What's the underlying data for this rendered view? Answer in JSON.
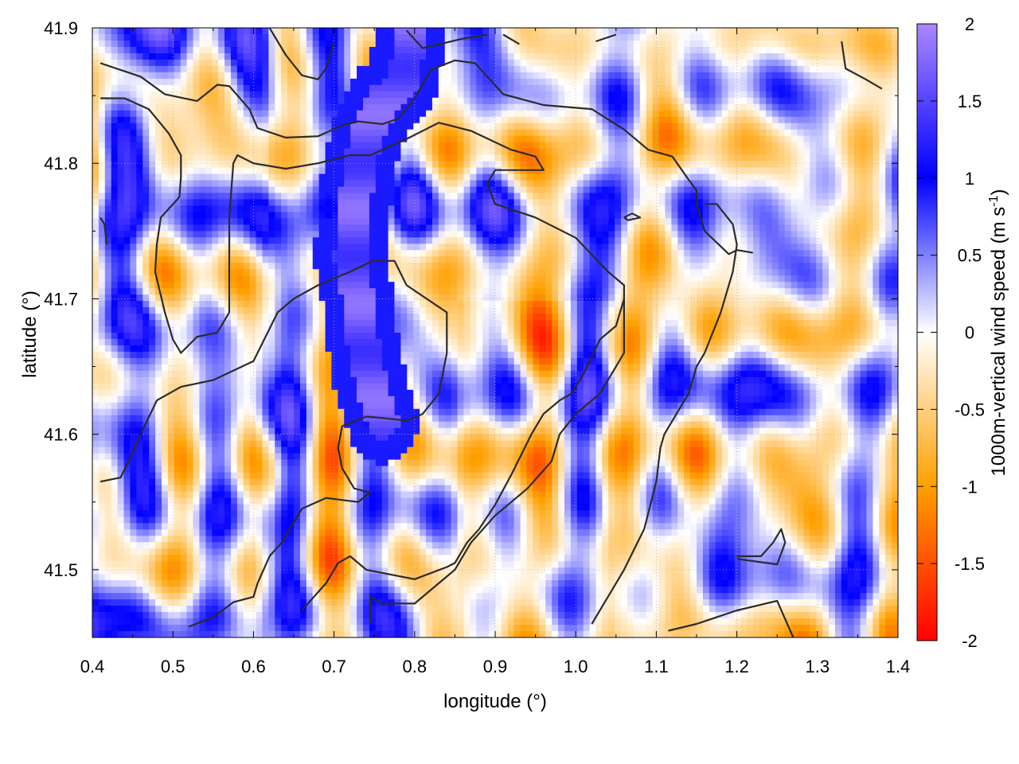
{
  "chart_data": {
    "type": "heatmap",
    "title": "",
    "xlabel": "longitude (°)",
    "ylabel": "latitude (°)",
    "colorbar_label": "1000m-vertical wind speed (m s",
    "colorbar_label_superscript": "-1",
    "colorbar_label_suffix": ")",
    "xlim": [
      0.4,
      1.4
    ],
    "ylim": [
      41.45,
      41.9
    ],
    "clim": [
      -2,
      2
    ],
    "x_ticks": [
      0.4,
      0.5,
      0.6,
      0.7,
      0.8,
      0.9,
      1.0,
      1.1,
      1.2,
      1.3,
      1.4
    ],
    "x_tick_labels": [
      "0.4",
      "0.5",
      "0.6",
      "0.7",
      "0.8",
      "0.9",
      "1.0",
      "1.1",
      "1.2",
      "1.3",
      "1.4"
    ],
    "y_ticks": [
      41.5,
      41.6,
      41.7,
      41.8,
      41.9
    ],
    "y_tick_labels": [
      "41.5",
      "41.6",
      "41.7",
      "41.8",
      "41.9"
    ],
    "colorbar_ticks": [
      2,
      1.5,
      1,
      0.5,
      0,
      -0.5,
      -1,
      -1.5,
      -2
    ],
    "colorbar_tick_labels": [
      "2",
      "1.5",
      "1",
      "0.5",
      "0",
      "-0.5",
      "-1",
      "-1.5",
      "-2"
    ],
    "colormap": [
      {
        "value": -2,
        "color": "#ff0000"
      },
      {
        "value": -1,
        "color": "#ffa000"
      },
      {
        "value": 0,
        "color": "#ffffff"
      },
      {
        "value": 1,
        "color": "#0000ff"
      },
      {
        "value": 2,
        "color": "#aa88ff"
      }
    ],
    "grid": true,
    "contour_color": "#2b2b2b",
    "contours": [
      [
        [
          0.41,
          41.874
        ],
        [
          0.46,
          41.864
        ],
        [
          0.49,
          41.851
        ],
        [
          0.53,
          41.846
        ],
        [
          0.555,
          41.858
        ],
        [
          0.57,
          41.857
        ],
        [
          0.595,
          41.84
        ],
        [
          0.605,
          41.826
        ],
        [
          0.64,
          41.819
        ],
        [
          0.68,
          41.82
        ],
        [
          0.71,
          41.828
        ],
        [
          0.73,
          41.831
        ],
        [
          0.745,
          41.83
        ],
        [
          0.76,
          41.829
        ],
        [
          0.78,
          41.833
        ],
        [
          0.8,
          41.848
        ],
        [
          0.82,
          41.869
        ],
        [
          0.85,
          41.876
        ],
        [
          0.875,
          41.874
        ],
        [
          0.91,
          41.851
        ],
        [
          0.96,
          41.843
        ],
        [
          1.02,
          41.84
        ],
        [
          1.06,
          41.825
        ],
        [
          1.09,
          41.81
        ],
        [
          1.12,
          41.805
        ],
        [
          1.14,
          41.788
        ],
        [
          1.15,
          41.78
        ],
        [
          1.15,
          41.77
        ],
        [
          1.16,
          41.75
        ],
        [
          1.19,
          41.733
        ],
        [
          1.2,
          41.736
        ],
        [
          1.22,
          41.734
        ]
      ],
      [
        [
          0.41,
          41.848
        ],
        [
          0.44,
          41.848
        ],
        [
          0.47,
          41.84
        ],
        [
          0.495,
          41.822
        ],
        [
          0.51,
          41.806
        ],
        [
          0.51,
          41.79
        ],
        [
          0.508,
          41.775
        ],
        [
          0.485,
          41.76
        ],
        [
          0.48,
          41.74
        ],
        [
          0.478,
          41.72
        ],
        [
          0.49,
          41.69
        ],
        [
          0.5,
          41.67
        ],
        [
          0.51,
          41.66
        ],
        [
          0.53,
          41.672
        ],
        [
          0.555,
          41.675
        ],
        [
          0.57,
          41.69
        ],
        [
          0.57,
          41.72
        ],
        [
          0.57,
          41.76
        ],
        [
          0.575,
          41.8
        ],
        [
          0.58,
          41.806
        ],
        [
          0.6,
          41.8
        ],
        [
          0.64,
          41.796
        ],
        [
          0.68,
          41.8
        ],
        [
          0.72,
          41.806
        ],
        [
          0.745,
          41.806
        ],
        [
          0.76,
          41.81
        ],
        [
          0.79,
          41.818
        ],
        [
          0.83,
          41.83
        ],
        [
          0.87,
          41.824
        ],
        [
          0.92,
          41.81
        ],
        [
          0.95,
          41.805
        ],
        [
          0.96,
          41.795
        ],
        [
          0.94,
          41.795
        ],
        [
          0.9,
          41.795
        ],
        [
          0.89,
          41.785
        ],
        [
          0.9,
          41.77
        ],
        [
          0.95,
          41.76
        ],
        [
          1.0,
          41.745
        ],
        [
          1.04,
          41.72
        ],
        [
          1.06,
          41.71
        ],
        [
          1.06,
          41.68
        ],
        [
          1.06,
          41.66
        ],
        [
          1.03,
          41.63
        ],
        [
          1.0,
          41.615
        ],
        [
          0.98,
          41.6
        ],
        [
          0.97,
          41.58
        ],
        [
          0.94,
          41.56
        ],
        [
          0.9,
          41.54
        ],
        [
          0.87,
          41.52
        ],
        [
          0.85,
          41.5
        ],
        [
          0.8,
          41.475
        ],
        [
          0.76,
          41.475
        ],
        [
          0.745,
          41.48
        ],
        [
          0.745,
          41.46
        ]
      ],
      [
        [
          0.41,
          41.565
        ],
        [
          0.435,
          41.568
        ],
        [
          0.445,
          41.58
        ],
        [
          0.46,
          41.6
        ],
        [
          0.48,
          41.625
        ],
        [
          0.51,
          41.635
        ],
        [
          0.55,
          41.64
        ],
        [
          0.6,
          41.654
        ],
        [
          0.63,
          41.69
        ],
        [
          0.65,
          41.7
        ],
        [
          0.68,
          41.71
        ],
        [
          0.72,
          41.72
        ],
        [
          0.748,
          41.728
        ],
        [
          0.775,
          41.728
        ],
        [
          0.79,
          41.71
        ],
        [
          0.84,
          41.69
        ],
        [
          0.84,
          41.66
        ],
        [
          0.83,
          41.63
        ],
        [
          0.81,
          41.615
        ],
        [
          0.79,
          41.61
        ],
        [
          0.76,
          41.612
        ],
        [
          0.74,
          41.613
        ],
        [
          0.71,
          41.606
        ],
        [
          0.705,
          41.59
        ],
        [
          0.71,
          41.575
        ],
        [
          0.725,
          41.56
        ],
        [
          0.745,
          41.557
        ],
        [
          0.73,
          41.55
        ],
        [
          0.69,
          41.553
        ],
        [
          0.66,
          41.545
        ],
        [
          0.645,
          41.53
        ],
        [
          0.635,
          41.52
        ],
        [
          0.62,
          41.51
        ],
        [
          0.605,
          41.49
        ],
        [
          0.6,
          41.48
        ],
        [
          0.575,
          41.476
        ],
        [
          0.55,
          41.465
        ],
        [
          0.52,
          41.458
        ]
      ],
      [
        [
          0.66,
          41.47
        ],
        [
          0.69,
          41.49
        ],
        [
          0.705,
          41.505
        ],
        [
          0.72,
          41.51
        ],
        [
          0.74,
          41.5
        ],
        [
          0.8,
          41.493
        ],
        [
          0.84,
          41.502
        ],
        [
          0.85,
          41.505
        ],
        [
          0.865,
          41.52
        ],
        [
          0.88,
          41.53
        ],
        [
          0.9,
          41.548
        ],
        [
          0.92,
          41.57
        ],
        [
          0.945,
          41.6
        ],
        [
          0.96,
          41.615
        ],
        [
          0.98,
          41.625
        ],
        [
          0.995,
          41.63
        ],
        [
          1.01,
          41.645
        ],
        [
          1.03,
          41.67
        ],
        [
          1.05,
          41.68
        ],
        [
          1.06,
          41.7
        ],
        [
          1.06,
          41.69
        ]
      ],
      [
        [
          1.02,
          41.46
        ],
        [
          1.04,
          41.48
        ],
        [
          1.06,
          41.5
        ],
        [
          1.085,
          41.53
        ],
        [
          1.1,
          41.565
        ],
        [
          1.105,
          41.59
        ],
        [
          1.11,
          41.6
        ],
        [
          1.13,
          41.62
        ],
        [
          1.14,
          41.63
        ],
        [
          1.15,
          41.65
        ],
        [
          1.16,
          41.66
        ],
        [
          1.18,
          41.69
        ],
        [
          1.195,
          41.72
        ],
        [
          1.2,
          41.74
        ],
        [
          1.195,
          41.755
        ],
        [
          1.175,
          41.77
        ],
        [
          1.16,
          41.77
        ]
      ],
      [
        [
          1.115,
          41.455
        ],
        [
          1.15,
          41.46
        ],
        [
          1.2,
          41.47
        ],
        [
          1.25,
          41.477
        ],
        [
          1.27,
          41.45
        ]
      ],
      [
        [
          1.2,
          41.508
        ],
        [
          1.25,
          41.504
        ],
        [
          1.26,
          41.52
        ],
        [
          1.255,
          41.53
        ],
        [
          1.245,
          41.52
        ],
        [
          1.23,
          41.51
        ],
        [
          1.2,
          41.51
        ]
      ],
      [
        [
          1.33,
          41.89
        ],
        [
          1.335,
          41.87
        ],
        [
          1.36,
          41.862
        ],
        [
          1.38,
          41.855
        ]
      ],
      [
        [
          0.41,
          41.76
        ],
        [
          0.415,
          41.755
        ],
        [
          0.418,
          41.74
        ]
      ],
      [
        [
          0.62,
          41.9
        ],
        [
          0.64,
          41.88
        ],
        [
          0.66,
          41.865
        ],
        [
          0.68,
          41.862
        ],
        [
          0.69,
          41.87
        ],
        [
          0.7,
          41.89
        ]
      ],
      [
        [
          0.79,
          41.898
        ],
        [
          0.81,
          41.885
        ],
        [
          0.86,
          41.892
        ],
        [
          0.89,
          41.895
        ]
      ],
      [
        [
          0.91,
          41.895
        ],
        [
          0.93,
          41.888
        ]
      ],
      [
        [
          1.025,
          41.89
        ],
        [
          1.05,
          41.895
        ]
      ],
      [
        [
          1.06,
          41.76
        ],
        [
          1.07,
          41.763
        ],
        [
          1.08,
          41.76
        ],
        [
          1.065,
          41.758
        ],
        [
          1.06,
          41.76
        ]
      ]
    ],
    "positive_streaks": [
      [
        [
          0.76,
          41.61
        ],
        [
          0.745,
          41.64
        ],
        [
          0.735,
          41.67
        ],
        [
          0.73,
          41.7
        ],
        [
          0.72,
          41.73
        ],
        [
          0.725,
          41.76
        ],
        [
          0.73,
          41.79
        ],
        [
          0.74,
          41.82
        ],
        [
          0.76,
          41.845
        ],
        [
          0.785,
          41.86
        ],
        [
          0.795,
          41.89
        ]
      ]
    ]
  }
}
